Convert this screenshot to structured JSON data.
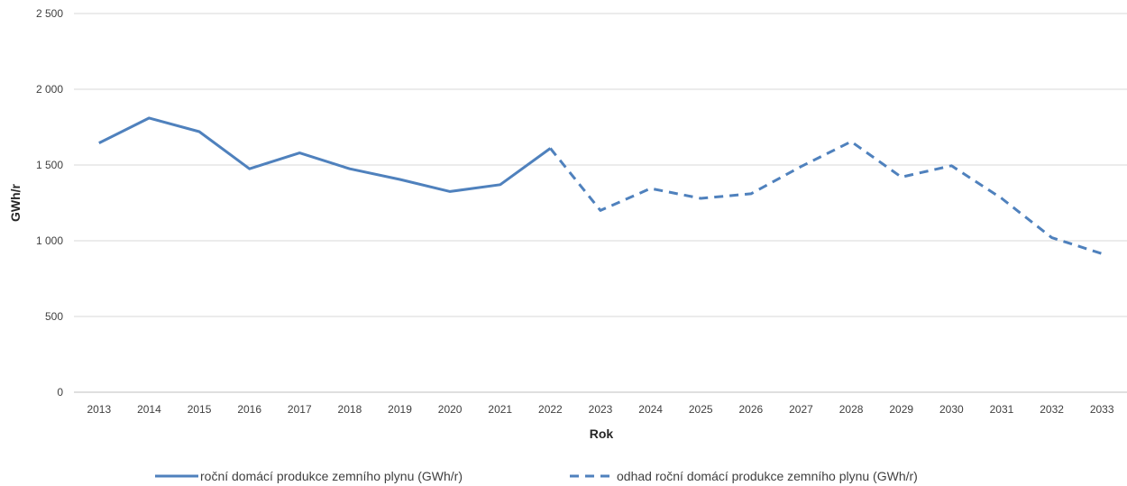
{
  "chart_data": {
    "type": "line",
    "title": "",
    "xlabel": "Rok",
    "ylabel": "GWh/r",
    "ylim": [
      0,
      2500
    ],
    "yticks": [
      0,
      500,
      1000,
      1500,
      2000,
      2500
    ],
    "ytick_labels": [
      "0",
      "500",
      "1 000",
      "1 500",
      "2 000",
      "2 500"
    ],
    "grid": "horizontal",
    "legend_position": "bottom",
    "categories": [
      "2013",
      "2014",
      "2015",
      "2016",
      "2017",
      "2018",
      "2019",
      "2020",
      "2021",
      "2022",
      "2023",
      "2024",
      "2025",
      "2026",
      "2027",
      "2028",
      "2029",
      "2030",
      "2031",
      "2032",
      "2033"
    ],
    "series": [
      {
        "name": "roční domácí produkce zemního plynu (GWh/r)",
        "style": "solid",
        "color": "#4F81BD",
        "values": [
          1645,
          1810,
          1720,
          1475,
          1580,
          1475,
          1405,
          1325,
          1370,
          1610,
          null,
          null,
          null,
          null,
          null,
          null,
          null,
          null,
          null,
          null,
          null
        ]
      },
      {
        "name": "odhad roční domácí produkce zemního plynu (GWh/r)",
        "style": "dashed",
        "color": "#4F81BD",
        "values": [
          null,
          null,
          null,
          null,
          null,
          null,
          null,
          null,
          null,
          1610,
          1200,
          1345,
          1280,
          1310,
          1490,
          1655,
          1420,
          1495,
          1280,
          1020,
          915
        ]
      }
    ]
  }
}
